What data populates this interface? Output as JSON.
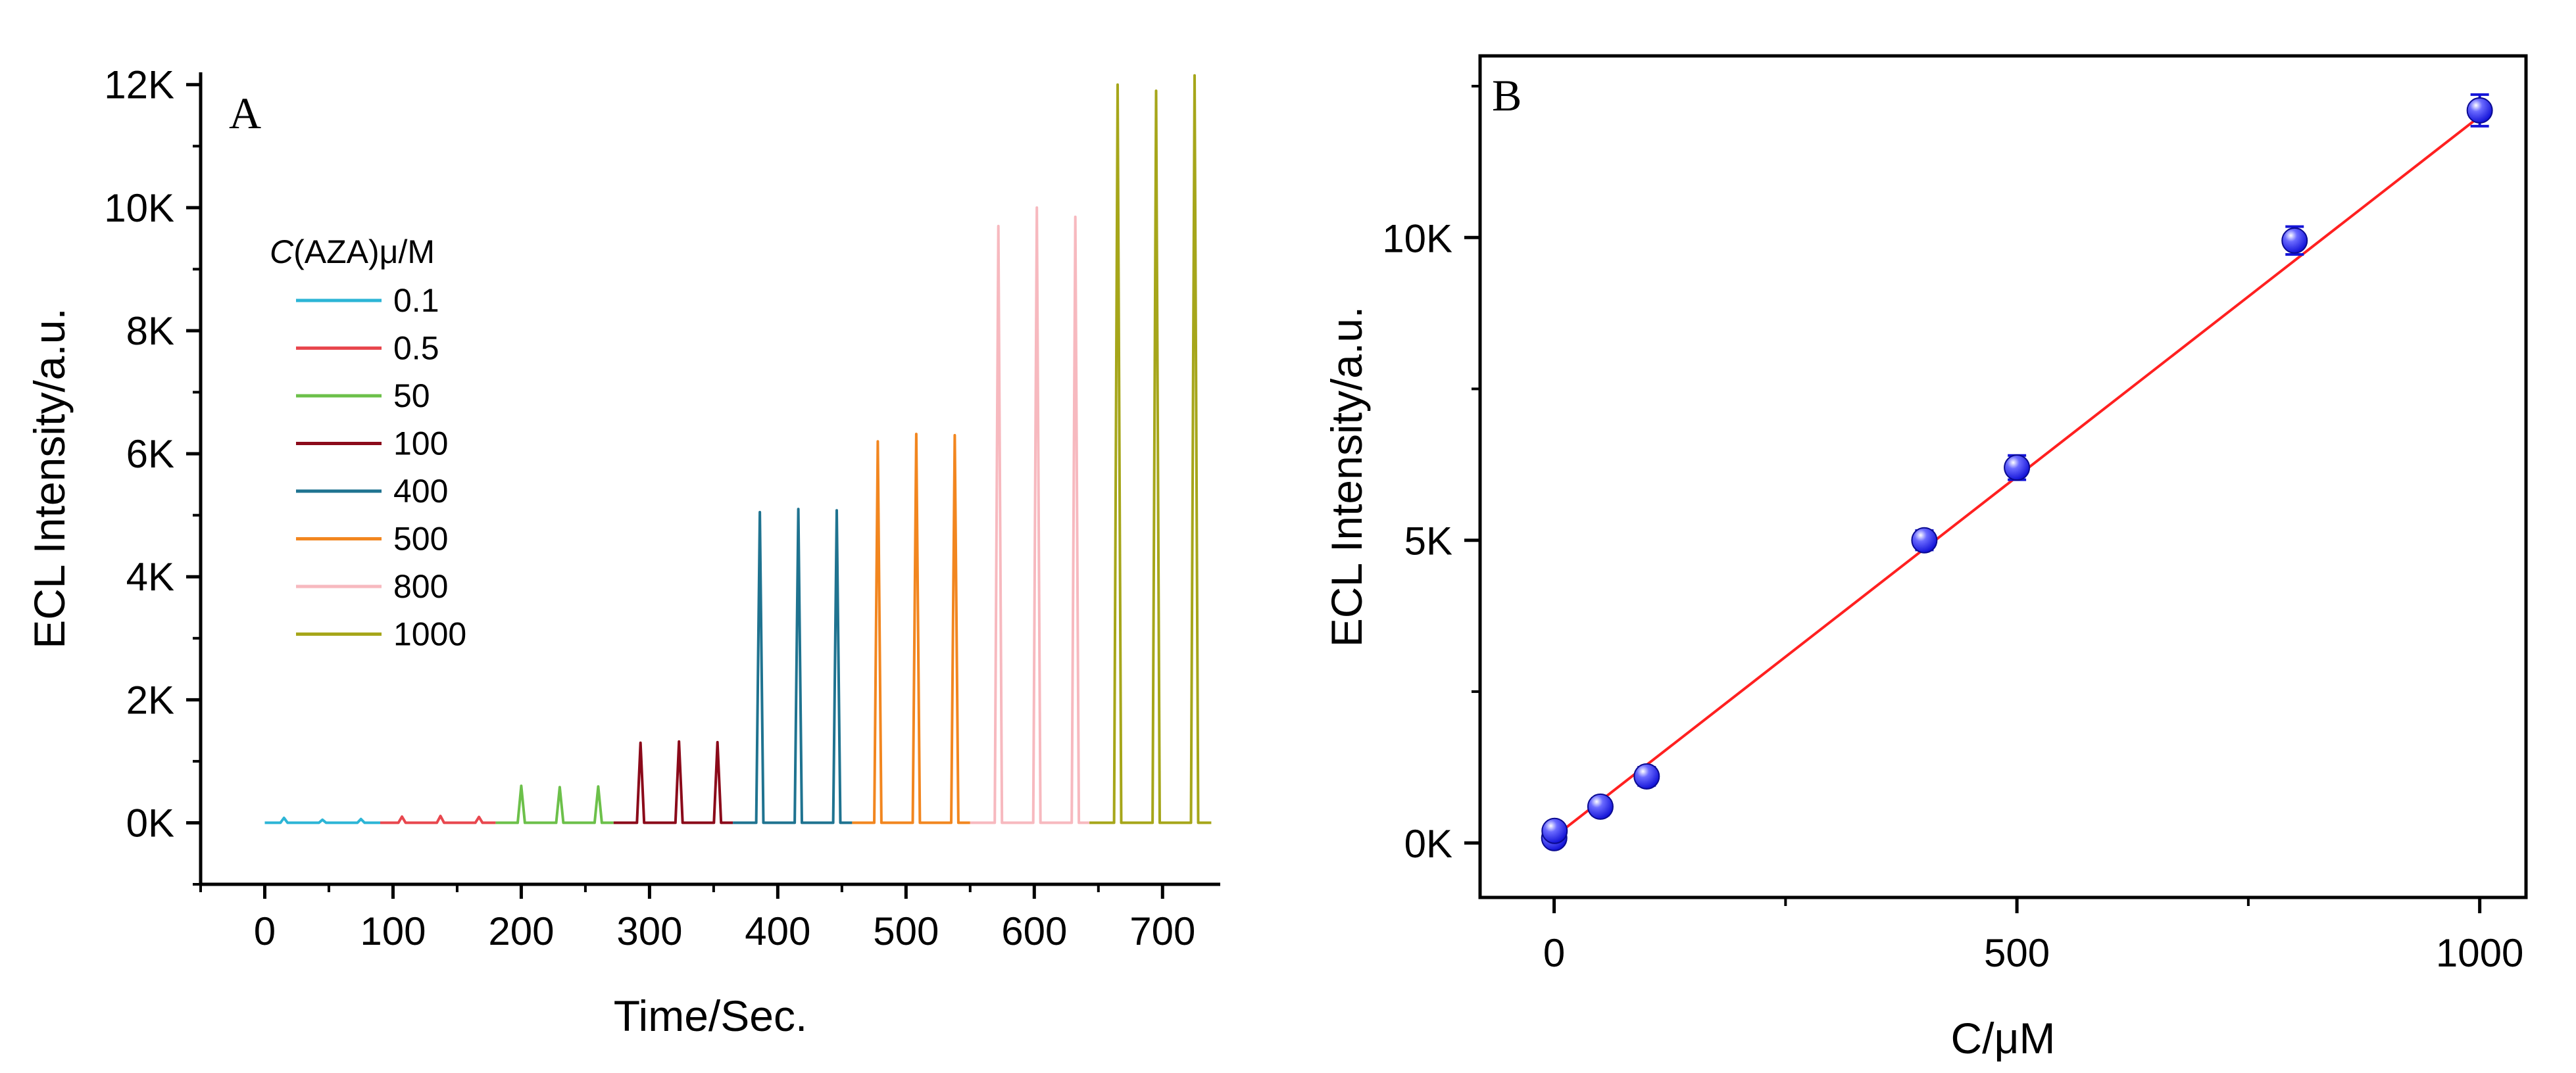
{
  "chart_data": [
    {
      "type": "line",
      "panel_label": "A",
      "xlabel": "Time/Sec.",
      "ylabel": "ECL Intensity/a.u.",
      "xlim": [
        -50,
        745
      ],
      "ylim": [
        -1000,
        12200
      ],
      "x_ticks": [
        0,
        100,
        200,
        300,
        400,
        500,
        600,
        700
      ],
      "x_tick_labels": [
        "0",
        "100",
        "200",
        "300",
        "400",
        "500",
        "600",
        "700"
      ],
      "y_ticks": [
        0,
        2000,
        4000,
        6000,
        8000,
        10000,
        12000
      ],
      "y_tick_labels": [
        "0K",
        "2K",
        "4K",
        "6K",
        "8K",
        "10K",
        "12K"
      ],
      "legend_title_prefix": "C",
      "legend_title_rest": "(AZA)μ/M",
      "legend_position": "upper-left",
      "series": [
        {
          "name": "0.1",
          "color": "#2cb5d6",
          "x_start": 0,
          "x_end": 90,
          "peaks": [
            15,
            45,
            75
          ],
          "heights": [
            80,
            50,
            60
          ]
        },
        {
          "name": "0.5",
          "color": "#e8474e",
          "x_start": 90,
          "x_end": 180,
          "peaks": [
            107,
            137,
            167
          ],
          "heights": [
            100,
            110,
            95
          ]
        },
        {
          "name": "50",
          "color": "#6cc04a",
          "x_start": 180,
          "x_end": 272,
          "peaks": [
            200,
            230,
            260
          ],
          "heights": [
            600,
            580,
            590
          ]
        },
        {
          "name": "100",
          "color": "#8b0a1a",
          "x_start": 272,
          "x_end": 365,
          "peaks": [
            293,
            323,
            353
          ],
          "heights": [
            1300,
            1320,
            1310
          ]
        },
        {
          "name": "400",
          "color": "#1f7390",
          "x_start": 365,
          "x_end": 458,
          "peaks": [
            386,
            416,
            446
          ],
          "heights": [
            5050,
            5100,
            5080
          ]
        },
        {
          "name": "500",
          "color": "#f2861f",
          "x_start": 458,
          "x_end": 550,
          "peaks": [
            478,
            508,
            538
          ],
          "heights": [
            6200,
            6320,
            6300
          ]
        },
        {
          "name": "800",
          "color": "#f7b9bf",
          "x_start": 550,
          "x_end": 643,
          "peaks": [
            572,
            602,
            632
          ],
          "heights": [
            9700,
            10000,
            9850
          ]
        },
        {
          "name": "1000",
          "color": "#a6a61a",
          "x_start": 643,
          "x_end": 738,
          "peaks": [
            665,
            695,
            725
          ],
          "heights": [
            12000,
            11900,
            12150
          ]
        }
      ]
    },
    {
      "type": "scatter",
      "panel_label": "B",
      "xlabel": "C/μM",
      "ylabel": "ECL Intensity/a.u.",
      "xlim": [
        -80,
        1050
      ],
      "ylim": [
        -900,
        13000
      ],
      "x_ticks": [
        0,
        500,
        1000
      ],
      "x_tick_labels": [
        "0",
        "500",
        "1000"
      ],
      "y_ticks": [
        0,
        5000,
        10000
      ],
      "y_tick_labels": [
        "0K",
        "5K",
        "10K"
      ],
      "points": {
        "x": [
          0.1,
          0.5,
          50,
          100,
          400,
          500,
          800,
          1000
        ],
        "y": [
          80,
          200,
          600,
          1100,
          5000,
          6200,
          9950,
          12100
        ],
        "err": [
          120,
          120,
          140,
          150,
          160,
          200,
          230,
          260
        ]
      },
      "marker_color": "#1414d8",
      "fit_line": {
        "color": "#ff2020",
        "x": [
          0,
          1000
        ],
        "y": [
          100,
          12000
        ]
      }
    }
  ]
}
